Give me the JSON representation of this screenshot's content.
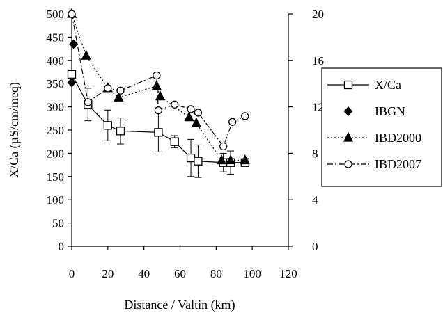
{
  "chart_data": {
    "type": "scatter",
    "xlabel": "Distance / Valtin (km)",
    "ylabel": "X/Ca (µS/cm/meq)",
    "xlim": [
      0,
      120
    ],
    "xticks": [
      "0",
      "20",
      "40",
      "60",
      "80",
      "100",
      "120"
    ],
    "ylim": [
      0,
      500
    ],
    "yticks": [
      "0",
      "50",
      "100",
      "150",
      "200",
      "250",
      "300",
      "350",
      "400",
      "450",
      "500"
    ],
    "y2lim": [
      0,
      20
    ],
    "y2ticks": [
      "0",
      "4",
      "8",
      "12",
      "16",
      "20"
    ],
    "grid": false,
    "legend_position": "right",
    "series": [
      {
        "name": "X/Ca",
        "axis": "left",
        "marker": "open-square",
        "line": "solid",
        "color": "#000000",
        "x": [
          0,
          9,
          20,
          27,
          48,
          57,
          66,
          70,
          84,
          88,
          96
        ],
        "y": [
          370,
          305,
          260,
          248,
          245,
          225,
          190,
          183,
          180,
          180,
          180
        ],
        "err": [
          0,
          35,
          33,
          28,
          42,
          13,
          40,
          35,
          20,
          25,
          8
        ]
      },
      {
        "name": "IBGN",
        "axis": "right",
        "marker": "filled-diamond",
        "line": "none",
        "color": "#000000",
        "x": [
          0,
          1
        ],
        "y": [
          14.1,
          17.4
        ]
      },
      {
        "name": "IBD2000",
        "axis": "right",
        "marker": "filled-triangle",
        "line": "dotted",
        "color": "#000000",
        "x": [
          0,
          8,
          20,
          26,
          47,
          49,
          65,
          69,
          83,
          88,
          96
        ],
        "y": [
          20,
          16.4,
          13.6,
          12.8,
          13.8,
          12.9,
          11.1,
          10.6,
          7.4,
          7.4,
          7.4
        ]
      },
      {
        "name": "IBD2007",
        "axis": "right",
        "marker": "open-circle",
        "line": "dashdot",
        "color": "#000000",
        "x": [
          0,
          9,
          20,
          27,
          47,
          48,
          57,
          66,
          70,
          84,
          89,
          96
        ],
        "y": [
          20,
          12.4,
          13.6,
          13.4,
          14.7,
          11.7,
          12.2,
          11.8,
          11.5,
          8.6,
          10.7,
          11.2
        ]
      }
    ]
  }
}
